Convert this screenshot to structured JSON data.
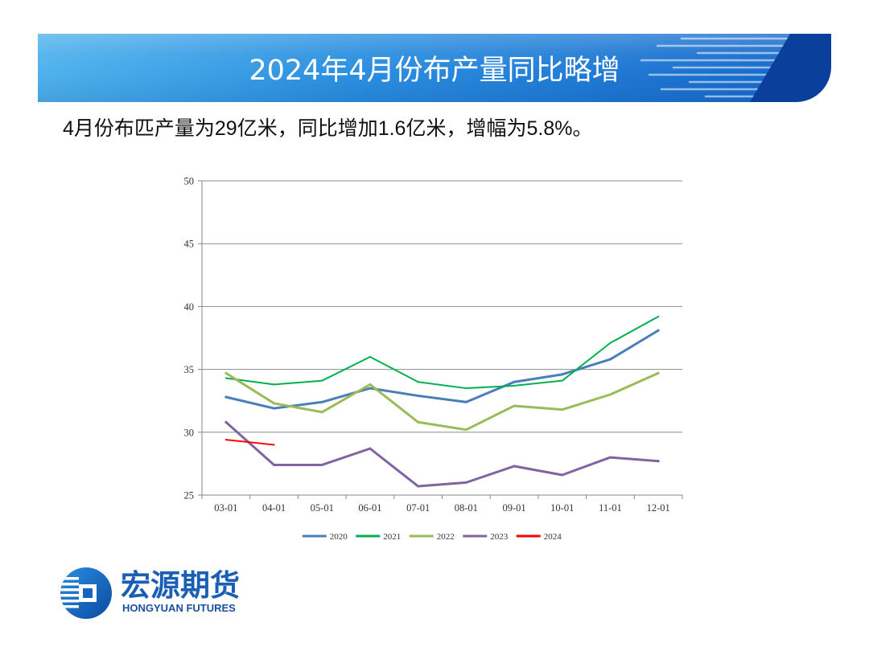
{
  "slide": {
    "title": "2024年4月份布产量同比略增",
    "subtitle": "4月份布匹产量为29亿米，同比增加1.6亿米，增幅为5.8%。"
  },
  "logo": {
    "name_cn": "宏源期货",
    "name_en": "HONGYUAN FUTURES",
    "icon": "hongyuan-logo-mark"
  },
  "colors": {
    "banner_light": "#4fb2ec",
    "banner_mid": "#2b8fe0",
    "banner_end": "#1566c9",
    "banner_dark": "#0b3f9c",
    "brand_blue": "#1a5fb4"
  },
  "chart_data": {
    "type": "line",
    "categories": [
      "03-01",
      "04-01",
      "05-01",
      "06-01",
      "07-01",
      "08-01",
      "09-01",
      "10-01",
      "11-01",
      "12-01"
    ],
    "ylim": [
      25,
      50
    ],
    "yticks": [
      25,
      30,
      35,
      40,
      45,
      50
    ],
    "grid": true,
    "legend": "bottom",
    "series": [
      {
        "name": "2020",
        "color": "#4a7ebb",
        "values": [
          32.8,
          31.9,
          32.4,
          33.5,
          32.9,
          32.4,
          34.0,
          34.6,
          35.8,
          38.1
        ]
      },
      {
        "name": "2021",
        "color": "#00b050",
        "values": [
          34.3,
          33.8,
          34.1,
          36.0,
          34.0,
          33.5,
          33.7,
          34.1,
          37.1,
          39.2
        ]
      },
      {
        "name": "2022",
        "color": "#9bbb59",
        "values": [
          34.7,
          32.3,
          31.6,
          33.8,
          30.8,
          30.2,
          32.1,
          31.8,
          33.0,
          34.7
        ]
      },
      {
        "name": "2023",
        "color": "#8064a2",
        "values": [
          30.8,
          27.4,
          27.4,
          28.7,
          25.7,
          26.0,
          27.3,
          26.6,
          28.0,
          27.7
        ]
      },
      {
        "name": "2024",
        "color": "#ff0000",
        "values": [
          29.4,
          29.0,
          null,
          null,
          null,
          null,
          null,
          null,
          null,
          null
        ]
      }
    ]
  }
}
